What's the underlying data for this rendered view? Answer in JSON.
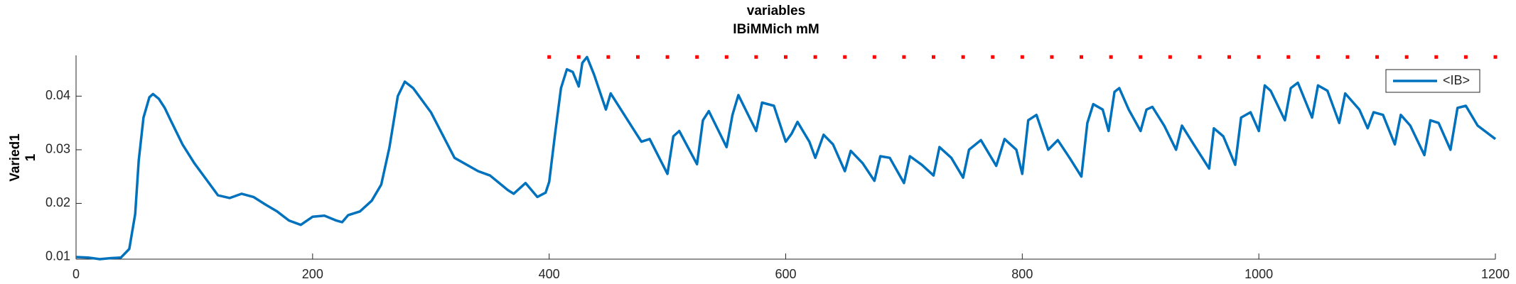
{
  "chart_data": {
    "type": "line",
    "title": [
      "variables",
      "IBiMMich mM"
    ],
    "ylabel": [
      "Varied1",
      "1"
    ],
    "xlim": [
      0,
      1200
    ],
    "xticks": [
      0,
      200,
      400,
      600,
      800,
      1000,
      1200
    ],
    "ylim": [
      0.0096,
      0.0476
    ],
    "yticks": [
      0.01,
      0.02,
      0.03,
      0.04
    ],
    "legend": "upper right",
    "series": [
      {
        "name": "<IB>",
        "color": "#0072bd",
        "x": [
          0,
          10,
          20,
          30,
          38,
          45,
          50,
          53,
          57,
          62,
          65,
          70,
          75,
          80,
          90,
          100,
          110,
          120,
          130,
          140,
          150,
          160,
          170,
          180,
          190,
          200,
          210,
          220,
          225,
          230,
          240,
          250,
          258,
          265,
          272,
          278,
          285,
          300,
          320,
          340,
          350,
          365,
          370,
          380,
          390,
          397,
          400,
          405,
          410,
          415,
          420,
          425,
          428,
          432,
          438,
          448,
          452,
          465,
          478,
          485,
          500,
          505,
          510,
          525,
          530,
          535,
          550,
          555,
          560,
          575,
          580,
          590,
          600,
          605,
          610,
          620,
          625,
          632,
          640,
          650,
          655,
          665,
          675,
          680,
          688,
          700,
          705,
          715,
          725,
          730,
          740,
          750,
          755,
          765,
          778,
          785,
          795,
          800,
          805,
          812,
          822,
          830,
          840,
          850,
          855,
          860,
          868,
          873,
          878,
          882,
          890,
          900,
          905,
          910,
          920,
          930,
          935,
          945,
          958,
          962,
          970,
          980,
          985,
          993,
          1000,
          1005,
          1010,
          1022,
          1027,
          1033,
          1045,
          1050,
          1058,
          1068,
          1073,
          1085,
          1092,
          1097,
          1105,
          1115,
          1120,
          1128,
          1140,
          1145,
          1152,
          1162,
          1168,
          1175,
          1185,
          1200
        ],
        "values": [
          0.01,
          0.0099,
          0.0096,
          0.0098,
          0.0099,
          0.0115,
          0.018,
          0.028,
          0.036,
          0.0398,
          0.0404,
          0.0395,
          0.0378,
          0.0355,
          0.031,
          0.0275,
          0.0245,
          0.0215,
          0.021,
          0.0218,
          0.0212,
          0.0198,
          0.0185,
          0.0168,
          0.016,
          0.0175,
          0.0177,
          0.0168,
          0.0165,
          0.0178,
          0.0185,
          0.0205,
          0.0235,
          0.0305,
          0.04,
          0.0427,
          0.0415,
          0.037,
          0.0285,
          0.026,
          0.0252,
          0.0225,
          0.0218,
          0.0238,
          0.0212,
          0.022,
          0.024,
          0.033,
          0.0415,
          0.045,
          0.0445,
          0.0418,
          0.0462,
          0.0473,
          0.044,
          0.0375,
          0.0405,
          0.036,
          0.0315,
          0.032,
          0.0255,
          0.0325,
          0.0335,
          0.0273,
          0.0355,
          0.0372,
          0.0305,
          0.0365,
          0.0402,
          0.0335,
          0.0388,
          0.0382,
          0.0315,
          0.033,
          0.0352,
          0.0315,
          0.0285,
          0.0328,
          0.031,
          0.026,
          0.0298,
          0.0275,
          0.0242,
          0.0288,
          0.0285,
          0.0238,
          0.0288,
          0.0272,
          0.0252,
          0.0305,
          0.0285,
          0.0248,
          0.03,
          0.0318,
          0.027,
          0.032,
          0.03,
          0.0255,
          0.0355,
          0.0365,
          0.03,
          0.0318,
          0.0285,
          0.025,
          0.035,
          0.0385,
          0.0375,
          0.0335,
          0.0408,
          0.0415,
          0.0375,
          0.0335,
          0.0375,
          0.038,
          0.0345,
          0.03,
          0.0345,
          0.031,
          0.0265,
          0.034,
          0.0325,
          0.0272,
          0.036,
          0.037,
          0.0335,
          0.042,
          0.041,
          0.0355,
          0.0415,
          0.0425,
          0.036,
          0.042,
          0.041,
          0.035,
          0.0405,
          0.0375,
          0.034,
          0.037,
          0.0365,
          0.031,
          0.0365,
          0.0345,
          0.029,
          0.0355,
          0.035,
          0.03,
          0.0378,
          0.0382,
          0.0345,
          0.032
        ]
      },
      {
        "color": "#ff0000",
        "marker": "dot",
        "x": [
          400,
          425,
          450,
          475,
          500,
          525,
          550,
          575,
          600,
          625,
          650,
          675,
          700,
          725,
          750,
          775,
          800,
          825,
          850,
          875,
          900,
          925,
          950,
          975,
          1000,
          1025,
          1050,
          1075,
          1100,
          1125,
          1150,
          1175,
          1200
        ],
        "values": [
          0.0473,
          0.0473,
          0.0473,
          0.0473,
          0.0473,
          0.0473,
          0.0473,
          0.0473,
          0.0473,
          0.0473,
          0.0473,
          0.0473,
          0.0473,
          0.0473,
          0.0473,
          0.0473,
          0.0473,
          0.0473,
          0.0473,
          0.0473,
          0.0473,
          0.0473,
          0.0473,
          0.0473,
          0.0473,
          0.0473,
          0.0473,
          0.0473,
          0.0473,
          0.0473,
          0.0473,
          0.0473,
          0.0473
        ]
      }
    ]
  }
}
